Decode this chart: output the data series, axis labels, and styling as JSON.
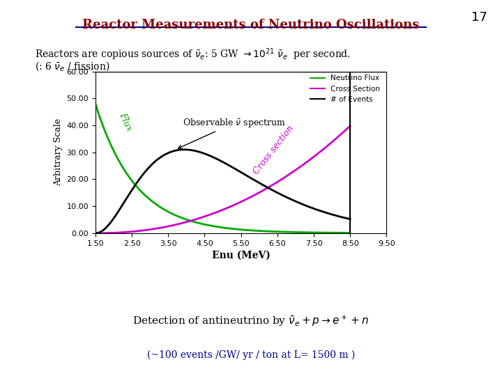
{
  "title": "Reactor Measurements of Neutrino Oscillations",
  "title_color": "#8B0000",
  "slide_number": "17",
  "bg_color": "#ffffff",
  "text_line1": "Reactors are copious sources of $\\bar{\\nu}_e$: 5 GW $\\rightarrow 10^{21}$ $\\bar{\\nu}_e$  per second.",
  "text_line2": "(: 6 $\\bar{\\nu}_e$ / fission)",
  "detection_text": "Detection of antineutrino by $\\bar{\\nu}_e + p \\rightarrow e^+ + n$",
  "bottom_text": "(~100 events /GW/ yr / ton at L= 1500 m )",
  "xlabel": "Enu (MeV)",
  "ylabel": "Arbitrary Scale",
  "ylim": [
    0,
    60
  ],
  "xlim": [
    1.5,
    9.5
  ],
  "yticks": [
    0.0,
    10.0,
    20.0,
    30.0,
    40.0,
    50.0,
    60.0
  ],
  "xticks": [
    1.5,
    2.5,
    3.5,
    4.5,
    5.5,
    6.5,
    7.5,
    8.5,
    9.5
  ],
  "flux_color": "#00aa00",
  "cross_color": "#cc00cc",
  "events_color": "#000000",
  "legend_labels": [
    "Neutrino Flux",
    "Cross Section",
    "# of Events"
  ],
  "flux_label_color": "#00aa00",
  "cross_label_color": "#cc00cc"
}
